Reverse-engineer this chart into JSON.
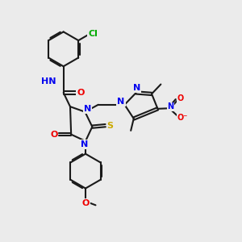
{
  "bg_color": "#ebebeb",
  "bond_color": "#1a1a1a",
  "bond_lw": 1.5,
  "dbo": 0.055,
  "atom_colors": {
    "N": "#0000ee",
    "O": "#ee0000",
    "S": "#ccaa00",
    "Cl": "#00aa00",
    "H": "#4a8888",
    "C": "#1a1a1a"
  },
  "fs": 8.0,
  "fs_small": 7.0,
  "xlim": [
    0,
    10
  ],
  "ylim": [
    0,
    10
  ]
}
